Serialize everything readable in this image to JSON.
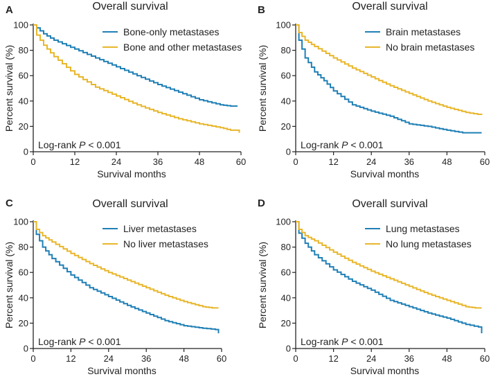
{
  "chart_data": [
    {
      "type": "line",
      "panel": "A",
      "title": "Overall survival",
      "xlabel": "Survival months",
      "ylabel": "Percent survival (%)",
      "xlim": [
        0,
        60
      ],
      "ylim": [
        0,
        100
      ],
      "xticks": [
        0,
        12,
        24,
        36,
        48,
        60
      ],
      "yticks": [
        0,
        20,
        40,
        60,
        80,
        100
      ],
      "annotation": {
        "text": "Log-rank ",
        "p": "P",
        "rest": " < 0.001"
      },
      "legend_position": "top-right",
      "series": [
        {
          "name": "Bone-only metastases",
          "color": "#1f7fb5",
          "x": [
            0,
            3,
            6,
            12,
            18,
            24,
            30,
            36,
            42,
            48,
            54,
            57,
            59
          ],
          "y": [
            100,
            93,
            88,
            81,
            74,
            67,
            60,
            53,
            47,
            41,
            37,
            36,
            36
          ]
        },
        {
          "name": "Bone and other metastases",
          "color": "#e8b62a",
          "x": [
            0,
            1,
            3,
            6,
            12,
            18,
            24,
            30,
            36,
            42,
            48,
            54,
            57,
            59,
            59.5
          ],
          "y": [
            100,
            92,
            84,
            75,
            61,
            51,
            44,
            37,
            31,
            26,
            22,
            19,
            17,
            17,
            15
          ]
        }
      ]
    },
    {
      "type": "line",
      "panel": "B",
      "title": "Overall survival",
      "xlabel": "Survival months",
      "ylabel": "Percent survival (%)",
      "xlim": [
        0,
        60
      ],
      "ylim": [
        0,
        100
      ],
      "xticks": [
        0,
        12,
        24,
        36,
        48,
        60
      ],
      "yticks": [
        0,
        20,
        40,
        60,
        80,
        100
      ],
      "annotation": {
        "text": "Log-rank ",
        "p": "P",
        "rest": " < 0.001"
      },
      "legend_position": "top-right",
      "series": [
        {
          "name": "Brain metastases",
          "color": "#1f7fb5",
          "x": [
            0,
            1,
            3,
            6,
            9,
            12,
            18,
            24,
            30,
            36,
            42,
            48,
            53,
            59
          ],
          "y": [
            100,
            88,
            74,
            63,
            56,
            48,
            37,
            32,
            28,
            22,
            20,
            17,
            15,
            15
          ]
        },
        {
          "name": "No brain metastases",
          "color": "#e8b62a",
          "x": [
            0,
            1,
            3,
            6,
            12,
            18,
            24,
            30,
            36,
            42,
            48,
            54,
            59
          ],
          "y": [
            100,
            94,
            88,
            83,
            74,
            66,
            59,
            52,
            46,
            40,
            35,
            31,
            29
          ]
        }
      ]
    },
    {
      "type": "line",
      "panel": "C",
      "title": "Overall survival",
      "xlabel": "Survival months",
      "ylabel": "Percent survival (%)",
      "xlim": [
        0,
        60
      ],
      "ylim": [
        0,
        100
      ],
      "xticks": [
        0,
        12,
        24,
        36,
        48,
        60
      ],
      "yticks": [
        0,
        20,
        40,
        60,
        80,
        100
      ],
      "annotation": {
        "text": "Log-rank ",
        "p": "P",
        "rest": " < 0.001"
      },
      "legend_position": "top-right",
      "series": [
        {
          "name": "Liver metastases",
          "color": "#1f7fb5",
          "x": [
            0,
            1,
            3,
            6,
            12,
            18,
            24,
            30,
            36,
            42,
            48,
            54,
            58,
            59
          ],
          "y": [
            100,
            90,
            80,
            71,
            58,
            48,
            41,
            34,
            28,
            22,
            18,
            16,
            15,
            12
          ]
        },
        {
          "name": "No liver metastases",
          "color": "#e8b62a",
          "x": [
            0,
            1,
            3,
            6,
            12,
            18,
            24,
            30,
            36,
            42,
            48,
            54,
            57,
            59
          ],
          "y": [
            100,
            94,
            89,
            84,
            75,
            67,
            60,
            54,
            48,
            42,
            37,
            33,
            32,
            32
          ]
        }
      ]
    },
    {
      "type": "line",
      "panel": "D",
      "title": "Overall survival",
      "xlabel": "Survival months",
      "ylabel": "Percent survival (%)",
      "xlim": [
        0,
        60
      ],
      "ylim": [
        0,
        100
      ],
      "xticks": [
        0,
        12,
        24,
        36,
        48,
        60
      ],
      "yticks": [
        0,
        20,
        40,
        60,
        80,
        100
      ],
      "annotation": {
        "text": "Log-rank ",
        "p": "P",
        "rest": " < 0.001"
      },
      "legend_position": "top-right",
      "series": [
        {
          "name": "Lung metastases",
          "color": "#1f7fb5",
          "x": [
            0,
            1,
            3,
            6,
            12,
            18,
            24,
            30,
            36,
            42,
            48,
            54,
            58,
            59
          ],
          "y": [
            100,
            91,
            83,
            74,
            62,
            53,
            46,
            38,
            33,
            28,
            24,
            19,
            17,
            12
          ]
        },
        {
          "name": "No lung metastases",
          "color": "#e8b62a",
          "x": [
            0,
            1,
            3,
            6,
            12,
            18,
            24,
            30,
            36,
            42,
            48,
            54,
            57,
            59
          ],
          "y": [
            100,
            94,
            89,
            85,
            76,
            68,
            61,
            55,
            49,
            43,
            38,
            33,
            32,
            32
          ]
        }
      ]
    }
  ]
}
